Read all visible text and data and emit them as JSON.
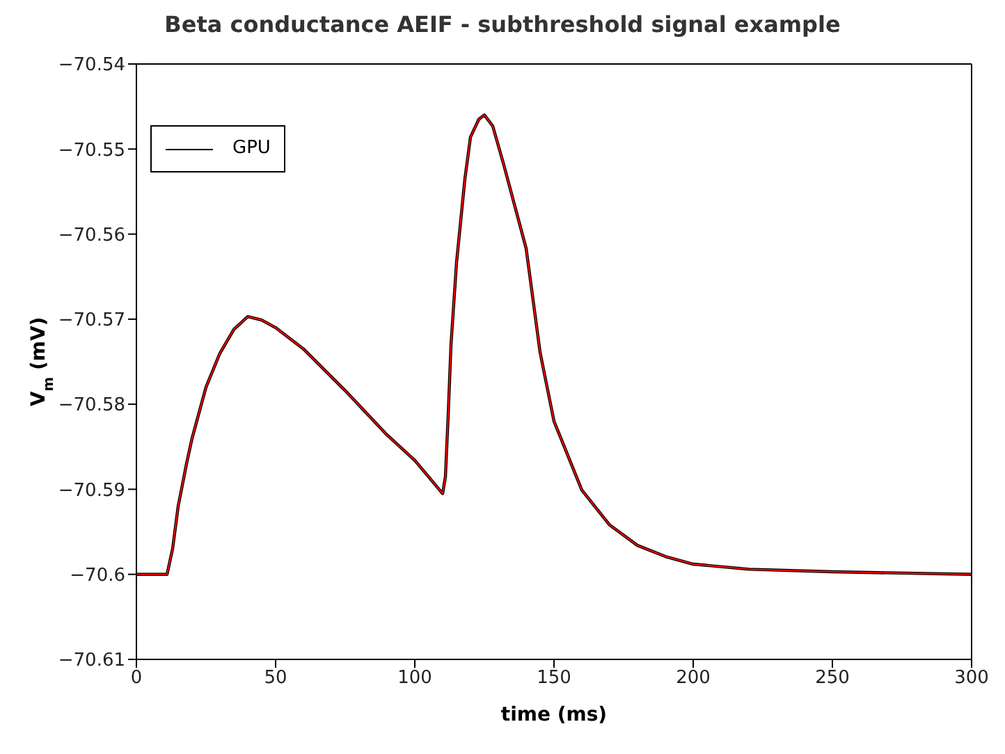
{
  "chart_data": {
    "type": "line",
    "title": "Beta conductance AEIF - subthreshold signal example",
    "xlabel": "time (ms)",
    "ylabel": "V$_{m}$ (mV)",
    "xlim": [
      0,
      300
    ],
    "xticks": [
      0,
      50,
      100,
      150,
      200,
      250,
      300
    ],
    "ylim": [
      -70.61,
      -70.54
    ],
    "yticks": [
      {
        "value": -70.61,
        "label": "−70.61"
      },
      {
        "value": -70.6,
        "label": "−70.6"
      },
      {
        "value": -70.59,
        "label": "−70.59"
      },
      {
        "value": -70.58,
        "label": "−70.58"
      },
      {
        "value": -70.57,
        "label": "−70.57"
      },
      {
        "value": -70.56,
        "label": "−70.56"
      },
      {
        "value": -70.55,
        "label": "−70.55"
      },
      {
        "value": -70.54,
        "label": "−70.54"
      }
    ],
    "legend": "top left",
    "grid": false,
    "marker": "none",
    "line_style": "solid",
    "x": [
      0,
      11,
      13,
      15,
      18,
      20,
      25,
      30,
      35,
      40,
      45,
      50,
      60,
      75,
      90,
      100,
      110,
      111,
      112,
      113,
      115,
      118,
      120,
      123,
      125,
      128,
      132,
      136,
      140,
      145,
      150,
      160,
      170,
      180,
      190,
      200,
      220,
      250,
      300
    ],
    "series": [
      {
        "name": "GPU",
        "color": "#000000",
        "values": [
          -70.6,
          -70.6,
          -70.597,
          -70.592,
          -70.587,
          -70.584,
          -70.578,
          -70.574,
          -70.5712,
          -70.5697,
          -70.5701,
          -70.571,
          -70.5735,
          -70.5784,
          -70.5836,
          -70.5866,
          -70.5905,
          -70.5885,
          -70.5812,
          -70.573,
          -70.5633,
          -70.5535,
          -70.5486,
          -70.5465,
          -70.546,
          -70.5473,
          -70.5519,
          -70.5568,
          -70.5617,
          -70.5739,
          -70.582,
          -70.5901,
          -70.5942,
          -70.5966,
          -70.5979,
          -70.5988,
          -70.5994,
          -70.5997,
          -70.6
        ]
      },
      {
        "color": "#ff0000",
        "values": [
          -70.6,
          -70.6,
          -70.597,
          -70.592,
          -70.587,
          -70.584,
          -70.578,
          -70.574,
          -70.5712,
          -70.5697,
          -70.5701,
          -70.571,
          -70.5735,
          -70.5784,
          -70.5836,
          -70.5866,
          -70.5905,
          -70.5885,
          -70.5812,
          -70.573,
          -70.5633,
          -70.5535,
          -70.5486,
          -70.5465,
          -70.546,
          -70.5473,
          -70.5519,
          -70.5568,
          -70.5617,
          -70.5739,
          -70.582,
          -70.5901,
          -70.5942,
          -70.5966,
          -70.5979,
          -70.5988,
          -70.5994,
          -70.5997,
          -70.6
        ]
      }
    ]
  }
}
